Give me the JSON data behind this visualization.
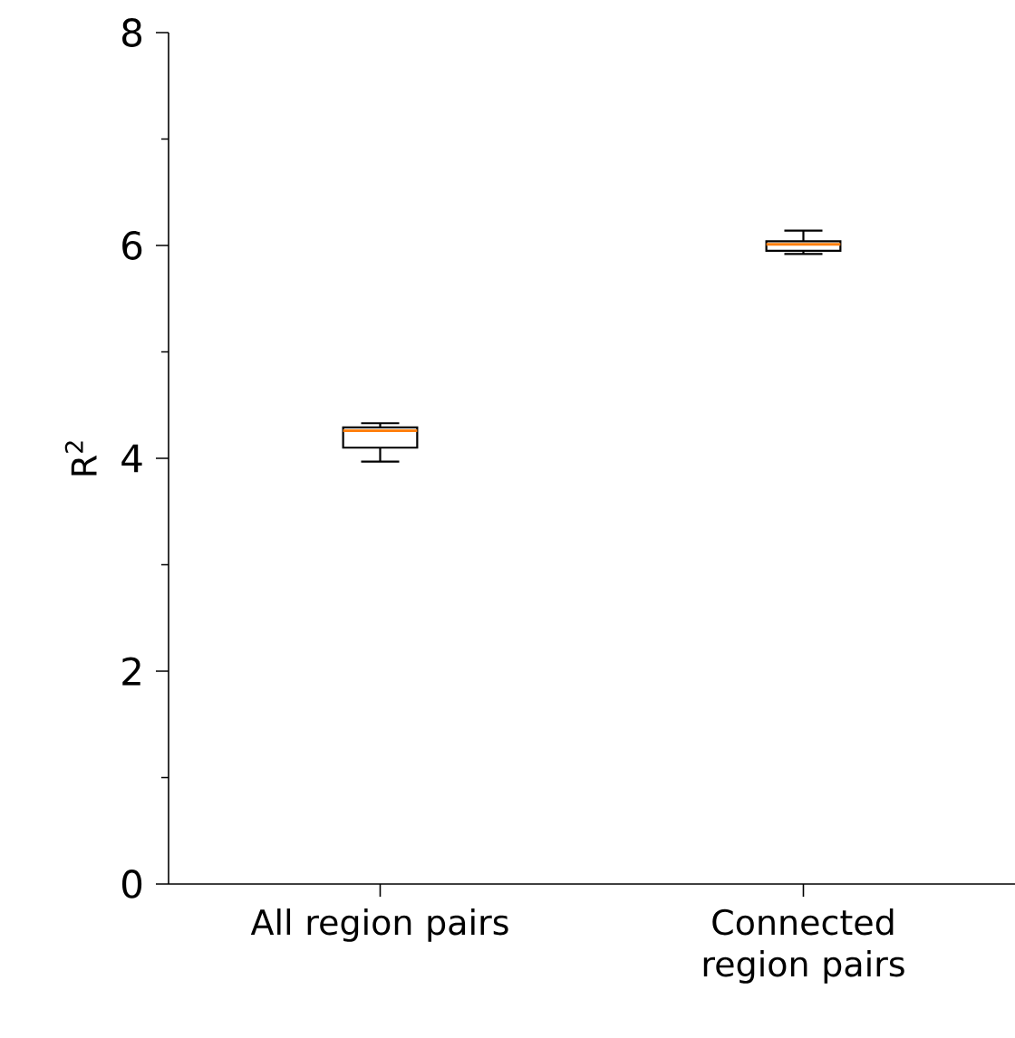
{
  "chart_data": {
    "type": "box",
    "categories": [
      "All region pairs",
      "Connected region pairs"
    ],
    "boxes": [
      {
        "low": 3.97,
        "q1": 4.1,
        "median": 4.26,
        "q3": 4.29,
        "high": 4.33
      },
      {
        "low": 5.92,
        "q1": 5.95,
        "median": 6.01,
        "q3": 6.04,
        "high": 6.14
      }
    ],
    "ylabel": "R$^{2}$",
    "ylim": [
      0,
      8
    ],
    "yticks": [
      0,
      {
        "value": 1,
        "label": null
      },
      2,
      {
        "value": 3,
        "label": null
      },
      4,
      {
        "value": 5,
        "label": null
      },
      6,
      {
        "value": 7,
        "label": null
      },
      8
    ],
    "color": "#000000",
    "grid": false
  }
}
